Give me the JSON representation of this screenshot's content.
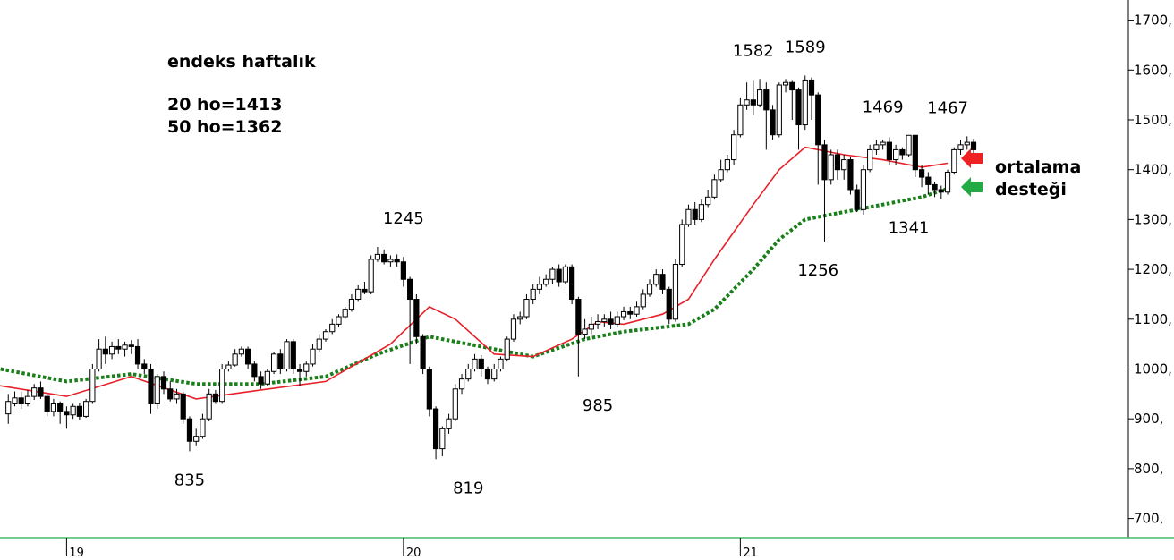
{
  "header": {
    "title": "endeks haftalık",
    "ma20_label": "20 ho=1413",
    "ma50_label": "50 ho=1362"
  },
  "support_note": {
    "line1": "ortalama",
    "line2": "desteği"
  },
  "colors": {
    "ma20": "#e8202a",
    "ma50": "#1a7f1a",
    "arrow_red": "#ee2222",
    "arrow_green": "#22aa44",
    "candle_up": "#ffffff",
    "candle_down": "#000000",
    "baseline": "#44bb66"
  },
  "chart_data": {
    "type": "candlestick",
    "title": "endeks haftalık",
    "y_axis": {
      "side": "right",
      "ylim": [
        650,
        1750
      ],
      "ticks": [
        700,
        800,
        900,
        1000,
        1100,
        1200,
        1300,
        1400,
        1500,
        1600,
        1700
      ],
      "tick_labels": [
        "700,",
        "800,",
        "900,",
        "1000,",
        "1100,",
        "1200,",
        "1300,",
        "1400,",
        "1500,",
        "1600,",
        "1700,"
      ]
    },
    "x_axis": {
      "ticks": [
        {
          "label": "19",
          "week": 10
        },
        {
          "label": "20",
          "week": 62
        },
        {
          "label": "21",
          "week": 114
        }
      ]
    },
    "grid": false,
    "annotations": [
      {
        "text": "1582",
        "week": 116,
        "value": 1582,
        "position": "above"
      },
      {
        "text": "1589",
        "week": 124,
        "value": 1589,
        "position": "above"
      },
      {
        "text": "1469",
        "week": 136,
        "value": 1469,
        "position": "above"
      },
      {
        "text": "1467",
        "week": 146,
        "value": 1467,
        "position": "above"
      },
      {
        "text": "1245",
        "week": 62,
        "value": 1245,
        "position": "above"
      },
      {
        "text": "835",
        "week": 29,
        "value": 835,
        "position": "below"
      },
      {
        "text": "819",
        "week": 72,
        "value": 819,
        "position": "below"
      },
      {
        "text": "985",
        "week": 92,
        "value": 985,
        "position": "below"
      },
      {
        "text": "1256",
        "week": 126,
        "value": 1256,
        "position": "below"
      },
      {
        "text": "1341",
        "week": 140,
        "value": 1341,
        "position": "below"
      }
    ],
    "series": [
      {
        "name": "20 ho",
        "values": [
          [
            -1,
            968
          ],
          [
            10,
            945
          ],
          [
            20,
            985
          ],
          [
            30,
            940
          ],
          [
            40,
            958
          ],
          [
            50,
            975
          ],
          [
            60,
            1050
          ],
          [
            66,
            1125
          ],
          [
            70,
            1100
          ],
          [
            76,
            1030
          ],
          [
            82,
            1025
          ],
          [
            88,
            1060
          ],
          [
            92,
            1095
          ],
          [
            96,
            1090
          ],
          [
            102,
            1110
          ],
          [
            106,
            1140
          ],
          [
            110,
            1220
          ],
          [
            116,
            1330
          ],
          [
            120,
            1400
          ],
          [
            124,
            1445
          ],
          [
            130,
            1430
          ],
          [
            136,
            1420
          ],
          [
            142,
            1405
          ],
          [
            146,
            1413
          ]
        ]
      },
      {
        "name": "50 ho",
        "values": [
          [
            -1,
            1002
          ],
          [
            10,
            975
          ],
          [
            20,
            990
          ],
          [
            30,
            970
          ],
          [
            40,
            970
          ],
          [
            50,
            985
          ],
          [
            58,
            1030
          ],
          [
            66,
            1065
          ],
          [
            74,
            1045
          ],
          [
            82,
            1025
          ],
          [
            90,
            1060
          ],
          [
            96,
            1075
          ],
          [
            106,
            1090
          ],
          [
            110,
            1120
          ],
          [
            116,
            1200
          ],
          [
            120,
            1260
          ],
          [
            124,
            1300
          ],
          [
            130,
            1315
          ],
          [
            136,
            1330
          ],
          [
            142,
            1345
          ],
          [
            146,
            1362
          ]
        ]
      }
    ],
    "candles": [
      [
        1,
        910,
        935,
        950,
        890
      ],
      [
        2,
        930,
        942,
        955,
        925
      ],
      [
        3,
        942,
        930,
        955,
        920
      ],
      [
        4,
        930,
        945,
        958,
        925
      ],
      [
        5,
        945,
        962,
        970,
        938
      ],
      [
        6,
        962,
        945,
        975,
        940
      ],
      [
        7,
        945,
        915,
        950,
        905
      ],
      [
        8,
        915,
        930,
        940,
        905
      ],
      [
        9,
        930,
        915,
        935,
        890
      ],
      [
        10,
        915,
        908,
        925,
        880
      ],
      [
        11,
        908,
        925,
        930,
        900
      ],
      [
        12,
        925,
        905,
        932,
        898
      ],
      [
        13,
        905,
        935,
        940,
        902
      ],
      [
        14,
        935,
        1000,
        1010,
        930
      ],
      [
        15,
        1000,
        1040,
        1060,
        995
      ],
      [
        16,
        1040,
        1030,
        1065,
        1010
      ],
      [
        17,
        1030,
        1045,
        1055,
        1020
      ],
      [
        18,
        1045,
        1040,
        1060,
        1030
      ],
      [
        19,
        1040,
        1048,
        1055,
        1025
      ],
      [
        20,
        1048,
        1045,
        1058,
        1030
      ],
      [
        21,
        1045,
        1010,
        1060,
        1000
      ],
      [
        22,
        1010,
        1000,
        1020,
        990
      ],
      [
        23,
        1000,
        930,
        1010,
        910
      ],
      [
        24,
        930,
        985,
        990,
        920
      ],
      [
        25,
        985,
        960,
        995,
        950
      ],
      [
        26,
        960,
        940,
        975,
        935
      ],
      [
        27,
        940,
        950,
        960,
        930
      ],
      [
        28,
        950,
        900,
        955,
        890
      ],
      [
        29,
        900,
        855,
        905,
        835
      ],
      [
        30,
        855,
        865,
        880,
        845
      ],
      [
        31,
        865,
        900,
        910,
        860
      ],
      [
        32,
        900,
        950,
        960,
        895
      ],
      [
        33,
        950,
        935,
        958,
        930
      ],
      [
        34,
        935,
        1000,
        1010,
        930
      ],
      [
        35,
        1000,
        1008,
        1015,
        995
      ],
      [
        36,
        1008,
        1030,
        1040,
        1005
      ],
      [
        37,
        1030,
        1040,
        1045,
        1025
      ],
      [
        38,
        1040,
        1010,
        1045,
        1000
      ],
      [
        39,
        1010,
        985,
        1015,
        975
      ],
      [
        40,
        985,
        970,
        995,
        960
      ],
      [
        41,
        970,
        995,
        1000,
        965
      ],
      [
        42,
        995,
        1030,
        1035,
        990
      ],
      [
        43,
        1030,
        1000,
        1040,
        990
      ],
      [
        44,
        1000,
        1055,
        1060,
        995
      ],
      [
        45,
        1055,
        1000,
        1060,
        990
      ],
      [
        46,
        1000,
        995,
        1010,
        965
      ],
      [
        47,
        995,
        1010,
        1015,
        985
      ],
      [
        48,
        1010,
        1040,
        1050,
        1005
      ],
      [
        49,
        1040,
        1060,
        1070,
        1035
      ],
      [
        50,
        1060,
        1075,
        1080,
        1055
      ],
      [
        51,
        1075,
        1090,
        1100,
        1070
      ],
      [
        52,
        1090,
        1105,
        1110,
        1085
      ],
      [
        53,
        1105,
        1120,
        1125,
        1100
      ],
      [
        54,
        1120,
        1140,
        1150,
        1115
      ],
      [
        55,
        1140,
        1160,
        1168,
        1135
      ],
      [
        56,
        1160,
        1155,
        1175,
        1150
      ],
      [
        57,
        1155,
        1220,
        1228,
        1150
      ],
      [
        58,
        1220,
        1230,
        1245,
        1215
      ],
      [
        59,
        1230,
        1215,
        1240,
        1210
      ],
      [
        60,
        1215,
        1220,
        1228,
        1205
      ],
      [
        61,
        1220,
        1215,
        1230,
        1205
      ],
      [
        62,
        1215,
        1180,
        1225,
        1165
      ],
      [
        63,
        1180,
        1140,
        1185,
        1010
      ],
      [
        64,
        1140,
        1065,
        1150,
        1050
      ],
      [
        65,
        1065,
        1000,
        1070,
        990
      ],
      [
        66,
        1000,
        920,
        1005,
        905
      ],
      [
        67,
        920,
        840,
        925,
        819
      ],
      [
        68,
        840,
        880,
        885,
        825
      ],
      [
        69,
        880,
        900,
        910,
        870
      ],
      [
        70,
        900,
        960,
        970,
        895
      ],
      [
        71,
        960,
        980,
        990,
        950
      ],
      [
        72,
        980,
        1000,
        1010,
        975
      ],
      [
        73,
        1000,
        1020,
        1030,
        995
      ],
      [
        74,
        1020,
        1000,
        1028,
        985
      ],
      [
        75,
        1000,
        980,
        1005,
        970
      ],
      [
        76,
        980,
        1000,
        1010,
        975
      ],
      [
        77,
        1000,
        1020,
        1025,
        995
      ],
      [
        78,
        1020,
        1060,
        1065,
        1015
      ],
      [
        79,
        1060,
        1100,
        1110,
        1055
      ],
      [
        80,
        1100,
        1105,
        1115,
        1090
      ],
      [
        81,
        1105,
        1140,
        1150,
        1100
      ],
      [
        82,
        1140,
        1160,
        1170,
        1130
      ],
      [
        83,
        1160,
        1170,
        1185,
        1150
      ],
      [
        84,
        1170,
        1180,
        1190,
        1165
      ],
      [
        85,
        1180,
        1200,
        1205,
        1170
      ],
      [
        86,
        1200,
        1175,
        1210,
        1165
      ],
      [
        87,
        1175,
        1205,
        1210,
        1170
      ],
      [
        88,
        1205,
        1140,
        1210,
        1130
      ],
      [
        89,
        1140,
        1070,
        1145,
        985
      ],
      [
        90,
        1070,
        1080,
        1100,
        1060
      ],
      [
        91,
        1080,
        1090,
        1105,
        1070
      ],
      [
        92,
        1090,
        1095,
        1110,
        1080
      ],
      [
        93,
        1095,
        1100,
        1110,
        1085
      ],
      [
        94,
        1100,
        1090,
        1115,
        1080
      ],
      [
        95,
        1090,
        1105,
        1115,
        1085
      ],
      [
        96,
        1105,
        1115,
        1125,
        1098
      ],
      [
        97,
        1115,
        1110,
        1125,
        1100
      ],
      [
        98,
        1110,
        1125,
        1135,
        1105
      ],
      [
        99,
        1125,
        1150,
        1160,
        1120
      ],
      [
        100,
        1150,
        1170,
        1180,
        1145
      ],
      [
        101,
        1170,
        1190,
        1200,
        1165
      ],
      [
        102,
        1190,
        1160,
        1200,
        1150
      ],
      [
        103,
        1160,
        1100,
        1165,
        1090
      ],
      [
        104,
        1100,
        1210,
        1220,
        1095
      ],
      [
        105,
        1210,
        1290,
        1300,
        1205
      ],
      [
        106,
        1290,
        1320,
        1330,
        1285
      ],
      [
        107,
        1320,
        1300,
        1335,
        1290
      ],
      [
        108,
        1300,
        1330,
        1340,
        1295
      ],
      [
        109,
        1330,
        1345,
        1360,
        1325
      ],
      [
        110,
        1345,
        1380,
        1390,
        1340
      ],
      [
        111,
        1380,
        1400,
        1420,
        1375
      ],
      [
        112,
        1400,
        1420,
        1430,
        1395
      ],
      [
        113,
        1420,
        1470,
        1480,
        1410
      ],
      [
        114,
        1470,
        1530,
        1545,
        1465
      ],
      [
        115,
        1530,
        1540,
        1575,
        1520
      ],
      [
        116,
        1540,
        1530,
        1580,
        1510
      ],
      [
        117,
        1530,
        1560,
        1582,
        1525
      ],
      [
        118,
        1560,
        1520,
        1575,
        1440
      ],
      [
        119,
        1520,
        1470,
        1530,
        1460
      ],
      [
        120,
        1470,
        1570,
        1575,
        1465
      ],
      [
        121,
        1570,
        1575,
        1582,
        1555
      ],
      [
        122,
        1575,
        1560,
        1580,
        1500
      ],
      [
        123,
        1560,
        1490,
        1565,
        1440
      ],
      [
        124,
        1490,
        1580,
        1589,
        1480
      ],
      [
        125,
        1580,
        1550,
        1585,
        1500
      ],
      [
        126,
        1550,
        1450,
        1555,
        1370
      ],
      [
        127,
        1450,
        1380,
        1460,
        1256
      ],
      [
        128,
        1380,
        1430,
        1440,
        1370
      ],
      [
        129,
        1430,
        1400,
        1440,
        1380
      ],
      [
        130,
        1400,
        1420,
        1430,
        1380
      ],
      [
        131,
        1420,
        1360,
        1425,
        1350
      ],
      [
        132,
        1360,
        1320,
        1370,
        1315
      ],
      [
        133,
        1320,
        1400,
        1410,
        1310
      ],
      [
        134,
        1400,
        1440,
        1450,
        1395
      ],
      [
        135,
        1440,
        1450,
        1460,
        1430
      ],
      [
        136,
        1450,
        1455,
        1460,
        1440
      ],
      [
        137,
        1455,
        1420,
        1465,
        1410
      ],
      [
        138,
        1420,
        1440,
        1450,
        1410
      ],
      [
        139,
        1440,
        1430,
        1445,
        1420
      ],
      [
        140,
        1430,
        1469,
        1469,
        1425
      ],
      [
        141,
        1469,
        1400,
        1469,
        1385
      ],
      [
        142,
        1400,
        1385,
        1410,
        1365
      ],
      [
        143,
        1385,
        1370,
        1395,
        1350
      ],
      [
        144,
        1370,
        1360,
        1375,
        1345
      ],
      [
        145,
        1360,
        1355,
        1368,
        1341
      ],
      [
        146,
        1355,
        1395,
        1400,
        1350
      ],
      [
        147,
        1395,
        1440,
        1445,
        1390
      ],
      [
        148,
        1440,
        1450,
        1460,
        1430
      ],
      [
        149,
        1450,
        1455,
        1467,
        1440
      ],
      [
        150,
        1455,
        1440,
        1462,
        1430
      ]
    ]
  }
}
